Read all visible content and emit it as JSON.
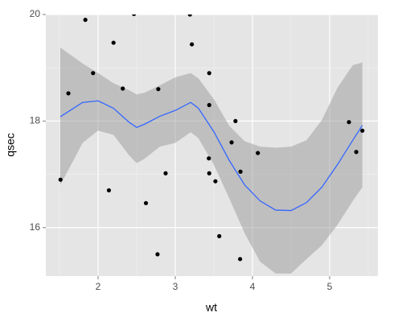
{
  "chart_data": {
    "type": "scatter",
    "x_label": "wt",
    "y_label": "qsec",
    "xlim": [
      1.323,
      5.625
    ],
    "ylim": [
      15.09,
      20.0
    ],
    "xticks": [
      2,
      3,
      4,
      5
    ],
    "yticks": [
      16,
      18,
      20
    ],
    "x_minor_ticks": [
      1.5,
      2.5,
      3.5,
      4.5,
      5.5
    ],
    "y_minor_ticks": [
      17,
      19
    ],
    "grid": true,
    "points": {
      "color": "#000000",
      "x": [
        1.513,
        1.615,
        1.835,
        1.935,
        2.14,
        2.2,
        2.32,
        2.465,
        2.62,
        2.77,
        2.78,
        2.875,
        3.19,
        3.215,
        3.44,
        3.44,
        3.435,
        3.44,
        3.52,
        3.57,
        3.73,
        3.78,
        3.84,
        3.845,
        4.07,
        5.25,
        5.345,
        5.424
      ],
      "values": [
        16.9,
        18.52,
        19.9,
        18.9,
        16.7,
        19.47,
        18.61,
        20.01,
        16.46,
        15.5,
        18.6,
        17.02,
        20.0,
        19.44,
        18.9,
        18.3,
        17.3,
        17.02,
        16.87,
        15.84,
        17.6,
        18.0,
        15.41,
        17.05,
        17.4,
        17.98,
        17.42,
        17.82
      ]
    },
    "smooth": {
      "color": "#3366ff",
      "band_color": "#999999",
      "x": [
        1.51,
        1.8,
        2.0,
        2.2,
        2.4,
        2.5,
        2.6,
        2.8,
        3.0,
        3.2,
        3.3,
        3.5,
        3.7,
        3.9,
        4.1,
        4.3,
        4.5,
        4.7,
        4.9,
        5.1,
        5.3,
        5.424
      ],
      "values": [
        18.08,
        18.35,
        18.38,
        18.24,
        17.98,
        17.88,
        17.94,
        18.09,
        18.2,
        18.35,
        18.24,
        17.8,
        17.26,
        16.8,
        16.5,
        16.33,
        16.32,
        16.47,
        16.76,
        17.18,
        17.64,
        17.92
      ],
      "upper": [
        19.38,
        19.08,
        18.9,
        18.71,
        18.58,
        18.5,
        18.53,
        18.67,
        18.82,
        18.9,
        18.8,
        18.41,
        17.91,
        17.62,
        17.52,
        17.5,
        17.52,
        17.64,
        18.02,
        18.62,
        19.05,
        19.1
      ],
      "lower": [
        16.8,
        17.59,
        17.82,
        17.74,
        17.36,
        17.21,
        17.29,
        17.52,
        17.59,
        17.79,
        17.68,
        17.18,
        16.55,
        15.89,
        15.36,
        15.14,
        15.14,
        15.41,
        15.67,
        16.05,
        16.5,
        16.76
      ]
    }
  }
}
